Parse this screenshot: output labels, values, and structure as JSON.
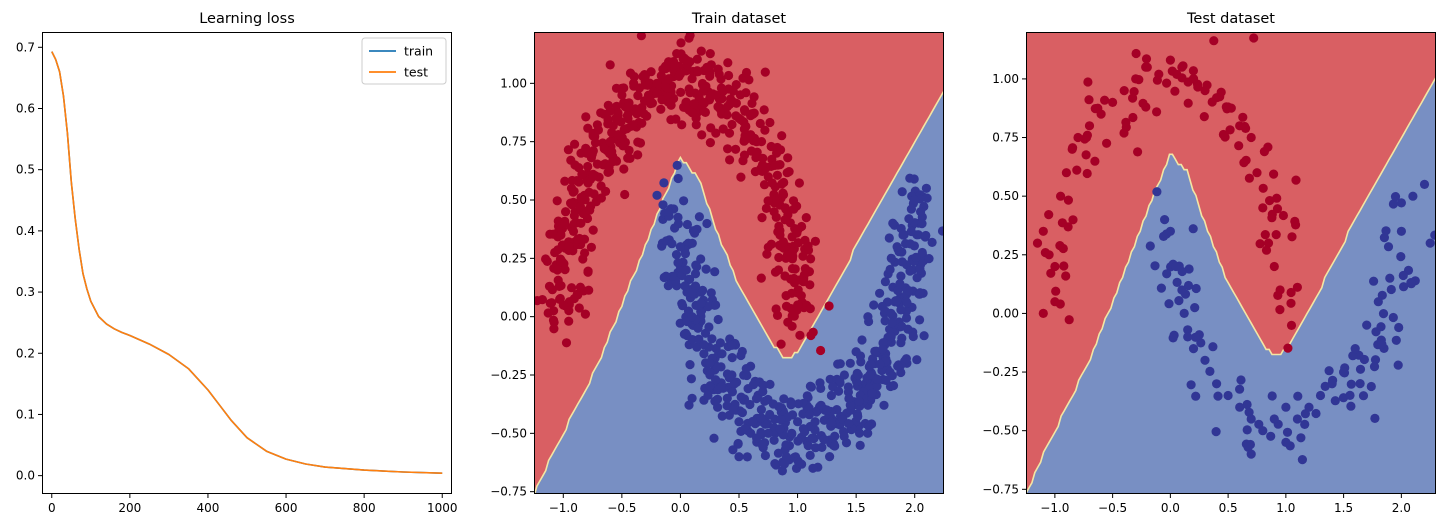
{
  "chart_data": [
    {
      "type": "line",
      "title": "Learning loss",
      "xlabel": "",
      "ylabel": "",
      "xlim": [
        -25,
        1025
      ],
      "ylim": [
        -0.03,
        0.725
      ],
      "xticks": [
        0,
        200,
        400,
        600,
        800,
        1000
      ],
      "yticks": [
        0.0,
        0.1,
        0.2,
        0.3,
        0.4,
        0.5,
        0.6,
        0.7
      ],
      "xtick_labels": [
        "0",
        "200",
        "400",
        "600",
        "800",
        "1000"
      ],
      "ytick_labels": [
        "0.0",
        "0.1",
        "0.2",
        "0.3",
        "0.4",
        "0.5",
        "0.6",
        "0.7"
      ],
      "legend_position": "top-right",
      "grid": false,
      "x": [
        0,
        10,
        20,
        30,
        40,
        50,
        60,
        70,
        80,
        90,
        100,
        120,
        140,
        160,
        180,
        200,
        250,
        300,
        350,
        400,
        430,
        460,
        500,
        550,
        600,
        650,
        700,
        800,
        900,
        1000
      ],
      "series": [
        {
          "name": "train",
          "color": "#1f77b4",
          "values": [
            0.693,
            0.68,
            0.66,
            0.62,
            0.56,
            0.48,
            0.42,
            0.37,
            0.33,
            0.305,
            0.285,
            0.26,
            0.248,
            0.24,
            0.234,
            0.229,
            0.215,
            0.198,
            0.175,
            0.14,
            0.115,
            0.09,
            0.062,
            0.04,
            0.027,
            0.019,
            0.014,
            0.009,
            0.006,
            0.004
          ]
        },
        {
          "name": "test",
          "color": "#ff7f0e",
          "values": [
            0.693,
            0.68,
            0.66,
            0.62,
            0.56,
            0.48,
            0.42,
            0.37,
            0.33,
            0.305,
            0.285,
            0.26,
            0.248,
            0.24,
            0.234,
            0.229,
            0.215,
            0.198,
            0.175,
            0.14,
            0.115,
            0.09,
            0.062,
            0.04,
            0.027,
            0.019,
            0.014,
            0.009,
            0.006,
            0.004
          ]
        }
      ]
    },
    {
      "type": "scatter",
      "title": "Train dataset",
      "xlabel": "",
      "ylabel": "",
      "xlim": [
        -1.25,
        2.25
      ],
      "ylim": [
        -0.76,
        1.22
      ],
      "xticks": [
        -1.0,
        -0.5,
        0.0,
        0.5,
        1.0,
        1.5,
        2.0
      ],
      "yticks": [
        -0.75,
        -0.5,
        -0.25,
        0.0,
        0.25,
        0.5,
        0.75,
        1.0
      ],
      "xtick_labels": [
        "−1.0",
        "−0.5",
        "0.0",
        "0.5",
        "1.0",
        "1.5",
        "2.0"
      ],
      "ytick_labels": [
        "−0.75",
        "−0.50",
        "−0.25",
        "0.00",
        "0.25",
        "0.50",
        "0.75",
        "1.00"
      ],
      "grid": false,
      "background": "decision regions: red above boundary, blue below",
      "boundary": {
        "x": [
          -1.25,
          -1.1,
          -0.9,
          -0.7,
          -0.5,
          -0.3,
          -0.15,
          0.0,
          0.15,
          0.3,
          0.5,
          0.7,
          0.85,
          0.95,
          1.05,
          1.2,
          1.4,
          1.6,
          1.8,
          2.0,
          2.25
        ],
        "y": [
          -0.76,
          -0.6,
          -0.4,
          -0.2,
          0.05,
          0.3,
          0.5,
          0.68,
          0.6,
          0.38,
          0.13,
          -0.05,
          -0.16,
          -0.18,
          -0.12,
          0.02,
          0.2,
          0.4,
          0.58,
          0.75,
          0.97
        ]
      },
      "region_colors": {
        "upper": "#d95f63",
        "lower": "#788fc3",
        "edge": "#f3e6a4"
      },
      "series": [
        {
          "color": "#a50026",
          "n": 500,
          "points": [
            [
              -1.1,
              0.06
            ],
            [
              -1.05,
              0.2
            ],
            [
              -1.02,
              0.35
            ],
            [
              -1.0,
              0.05
            ],
            [
              -0.98,
              0.45
            ],
            [
              -0.95,
              0.3
            ],
            [
              -0.93,
              0.55
            ],
            [
              -0.9,
              0.65
            ],
            [
              -0.85,
              0.4
            ],
            [
              -0.8,
              0.7
            ],
            [
              -0.75,
              0.6
            ],
            [
              -0.7,
              0.8
            ],
            [
              -0.65,
              0.72
            ],
            [
              -0.6,
              0.88
            ],
            [
              -0.55,
              0.85
            ],
            [
              -0.5,
              0.95
            ],
            [
              -0.45,
              0.9
            ],
            [
              -0.4,
              1.0
            ],
            [
              -0.35,
              0.98
            ],
            [
              -0.3,
              1.03
            ],
            [
              -0.25,
              1.05
            ],
            [
              -0.2,
              1.0
            ],
            [
              -0.15,
              1.06
            ],
            [
              -0.1,
              1.02
            ],
            [
              -0.05,
              1.08
            ],
            [
              0.0,
              1.04
            ],
            [
              0.05,
              1.1
            ],
            [
              0.1,
              1.02
            ],
            [
              0.15,
              1.05
            ],
            [
              0.2,
              0.98
            ],
            [
              0.25,
              1.03
            ],
            [
              0.3,
              0.95
            ],
            [
              0.35,
              0.98
            ],
            [
              0.4,
              0.9
            ],
            [
              0.45,
              0.92
            ],
            [
              0.5,
              0.85
            ],
            [
              0.55,
              0.88
            ],
            [
              0.6,
              0.78
            ],
            [
              0.65,
              0.75
            ],
            [
              0.7,
              0.65
            ],
            [
              0.75,
              0.6
            ],
            [
              0.8,
              0.45
            ],
            [
              0.85,
              0.35
            ],
            [
              0.9,
              0.25
            ],
            [
              0.95,
              0.1
            ],
            [
              1.0,
              0.05
            ],
            [
              1.02,
              -0.08
            ],
            [
              1.05,
              0.15
            ],
            [
              -0.6,
              0.75
            ],
            [
              0.2,
              0.88
            ]
          ]
        },
        {
          "color": "#313695",
          "n": 500,
          "points": [
            [
              -0.2,
              0.52
            ],
            [
              -0.1,
              0.45
            ],
            [
              -0.05,
              0.38
            ],
            [
              0.0,
              0.3
            ],
            [
              0.05,
              0.2
            ],
            [
              0.1,
              0.1
            ],
            [
              0.1,
              0.0
            ],
            [
              0.15,
              -0.05
            ],
            [
              0.2,
              -0.12
            ],
            [
              0.25,
              -0.2
            ],
            [
              0.3,
              -0.27
            ],
            [
              0.35,
              -0.3
            ],
            [
              0.4,
              -0.35
            ],
            [
              0.45,
              -0.4
            ],
            [
              0.5,
              -0.45
            ],
            [
              0.55,
              -0.48
            ],
            [
              0.6,
              -0.5
            ],
            [
              0.65,
              -0.52
            ],
            [
              0.7,
              -0.55
            ],
            [
              0.75,
              -0.5
            ],
            [
              0.8,
              -0.53
            ],
            [
              0.85,
              -0.48
            ],
            [
              0.9,
              -0.55
            ],
            [
              0.95,
              -0.5
            ],
            [
              1.0,
              -0.45
            ],
            [
              1.05,
              -0.48
            ],
            [
              1.1,
              -0.42
            ],
            [
              1.15,
              -0.45
            ],
            [
              1.2,
              -0.38
            ],
            [
              1.25,
              -0.4
            ],
            [
              1.3,
              -0.3
            ],
            [
              1.35,
              -0.32
            ],
            [
              1.4,
              -0.25
            ],
            [
              1.45,
              -0.2
            ],
            [
              1.5,
              -0.15
            ],
            [
              1.55,
              -0.1
            ],
            [
              1.6,
              0.0
            ],
            [
              1.65,
              0.05
            ],
            [
              1.7,
              0.1
            ],
            [
              1.75,
              0.15
            ],
            [
              1.8,
              0.25
            ],
            [
              1.85,
              0.3
            ],
            [
              1.9,
              0.35
            ],
            [
              1.95,
              0.42
            ],
            [
              2.0,
              0.5
            ],
            [
              2.05,
              0.45
            ],
            [
              2.1,
              0.55
            ],
            [
              0.5,
              -0.6
            ],
            [
              0.1,
              -0.35
            ],
            [
              0.3,
              0.05
            ]
          ]
        }
      ]
    },
    {
      "type": "scatter",
      "title": "Test dataset",
      "xlabel": "",
      "ylabel": "",
      "xlim": [
        -1.25,
        2.3
      ],
      "ylim": [
        -0.77,
        1.2
      ],
      "xticks": [
        -1.0,
        -0.5,
        0.0,
        0.5,
        1.0,
        1.5,
        2.0
      ],
      "yticks": [
        -0.75,
        -0.5,
        -0.25,
        0.0,
        0.25,
        0.5,
        0.75,
        1.0
      ],
      "xtick_labels": [
        "−1.0",
        "−0.5",
        "0.0",
        "0.5",
        "1.0",
        "1.5",
        "2.0"
      ],
      "ytick_labels": [
        "−0.75",
        "−0.50",
        "−0.25",
        "0.00",
        "0.25",
        "0.50",
        "0.75",
        "1.00"
      ],
      "grid": false,
      "background": "decision regions: red above boundary, blue below",
      "boundary": {
        "x": [
          -1.25,
          -1.1,
          -0.9,
          -0.7,
          -0.5,
          -0.3,
          -0.15,
          0.0,
          0.15,
          0.3,
          0.5,
          0.7,
          0.85,
          0.95,
          1.05,
          1.2,
          1.4,
          1.6,
          1.8,
          2.0,
          2.3
        ],
        "y": [
          -0.77,
          -0.6,
          -0.4,
          -0.2,
          0.05,
          0.3,
          0.5,
          0.68,
          0.6,
          0.38,
          0.13,
          -0.05,
          -0.16,
          -0.18,
          -0.12,
          0.02,
          0.2,
          0.4,
          0.58,
          0.75,
          1.0
        ]
      },
      "region_colors": {
        "upper": "#d95f63",
        "lower": "#788fc3",
        "edge": "#f3e6a4"
      },
      "series": [
        {
          "color": "#a50026",
          "n": 100,
          "points": [
            [
              -1.15,
              0.3
            ],
            [
              -1.1,
              0.35
            ],
            [
              -1.05,
              0.25
            ],
            [
              -1.0,
              0.2
            ],
            [
              -0.95,
              0.5
            ],
            [
              -0.9,
              0.6
            ],
            [
              -0.85,
              0.7
            ],
            [
              -0.8,
              0.75
            ],
            [
              -0.7,
              0.8
            ],
            [
              -0.6,
              0.85
            ],
            [
              -0.5,
              0.9
            ],
            [
              -0.4,
              0.95
            ],
            [
              -0.3,
              1.0
            ],
            [
              -0.2,
              1.05
            ],
            [
              -0.1,
              1.02
            ],
            [
              0.0,
              1.08
            ],
            [
              0.1,
              1.05
            ],
            [
              0.2,
              1.0
            ],
            [
              0.3,
              0.95
            ],
            [
              0.4,
              0.92
            ],
            [
              0.5,
              0.88
            ],
            [
              0.6,
              0.8
            ],
            [
              0.7,
              0.75
            ],
            [
              0.75,
              0.6
            ],
            [
              0.8,
              0.45
            ],
            [
              0.85,
              0.3
            ],
            [
              0.9,
              0.2
            ],
            [
              0.95,
              0.1
            ],
            [
              -1.0,
              0.05
            ],
            [
              -1.1,
              0.0
            ]
          ]
        },
        {
          "color": "#313695",
          "n": 100,
          "points": [
            [
              -0.05,
              0.4
            ],
            [
              0.0,
              0.35
            ],
            [
              0.05,
              0.2
            ],
            [
              0.1,
              0.1
            ],
            [
              0.12,
              0.0
            ],
            [
              0.15,
              -0.1
            ],
            [
              0.2,
              -0.15
            ],
            [
              0.3,
              -0.2
            ],
            [
              0.4,
              -0.3
            ],
            [
              0.5,
              -0.35
            ],
            [
              0.6,
              -0.4
            ],
            [
              0.7,
              -0.45
            ],
            [
              0.8,
              -0.5
            ],
            [
              0.9,
              -0.45
            ],
            [
              1.0,
              -0.4
            ],
            [
              1.1,
              -0.45
            ],
            [
              1.2,
              -0.4
            ],
            [
              1.3,
              -0.35
            ],
            [
              1.4,
              -0.3
            ],
            [
              1.5,
              -0.25
            ],
            [
              1.6,
              -0.15
            ],
            [
              1.7,
              -0.05
            ],
            [
              1.8,
              0.05
            ],
            [
              1.9,
              0.15
            ],
            [
              2.0,
              0.35
            ],
            [
              2.1,
              0.5
            ],
            [
              2.2,
              0.55
            ],
            [
              2.25,
              0.3
            ],
            [
              0.7,
              -0.6
            ],
            [
              1.0,
              -0.55
            ]
          ]
        }
      ]
    }
  ]
}
